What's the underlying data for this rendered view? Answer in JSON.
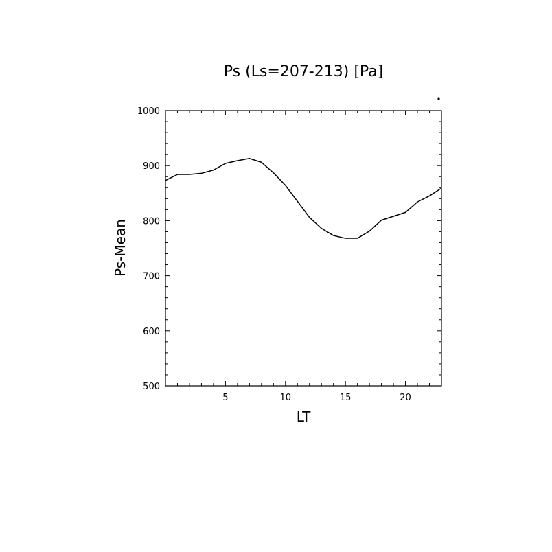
{
  "chart_data": {
    "type": "line",
    "title": "Ps (Ls=207-213) [Pa]",
    "xlabel": "LT",
    "ylabel": "Ps-Mean",
    "xlim": [
      0,
      23
    ],
    "ylim": [
      500,
      1000
    ],
    "x_ticks": [
      5,
      10,
      15,
      20
    ],
    "x_tick_labels": [
      "5",
      "10",
      "15",
      "20"
    ],
    "y_ticks": [
      500,
      600,
      700,
      800,
      900,
      1000
    ],
    "y_tick_labels": [
      "500",
      "600",
      "700",
      "800",
      "900",
      "1000"
    ],
    "grid": false,
    "legend": false,
    "series": [
      {
        "x": [
          0,
          1,
          2,
          3,
          4,
          5,
          6,
          7,
          8,
          9,
          10,
          11,
          12,
          13,
          14,
          15,
          16,
          17,
          18,
          19,
          20,
          21,
          22,
          23
        ],
        "values": [
          873,
          884,
          884,
          886,
          892,
          904,
          909,
          913,
          906,
          887,
          864,
          835,
          806,
          786,
          773,
          768,
          768,
          781,
          801,
          808,
          815,
          834,
          845,
          859
        ]
      }
    ],
    "line_color": "#000000"
  }
}
